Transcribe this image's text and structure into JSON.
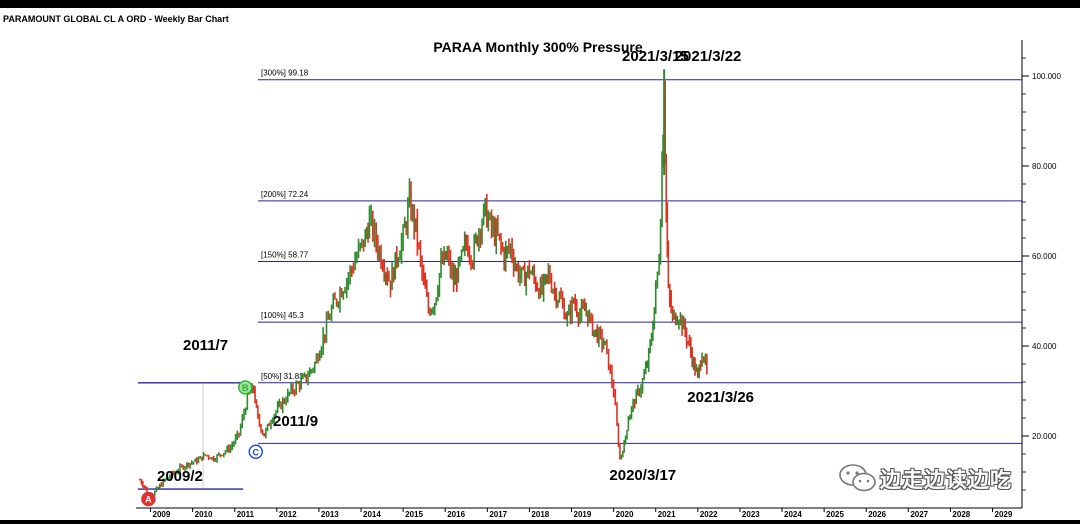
{
  "header": {
    "title": "PARAMOUNT GLOBAL CL A ORD - Weekly Bar Chart"
  },
  "watermark": {
    "text": "边走边读边吃",
    "icon": "wechat-icon"
  },
  "colors": {
    "up": "#2e8b2e",
    "down": "#e0301e",
    "level": "#2424a8",
    "bg": "#ffffff",
    "frame": "#000000"
  },
  "chart_data": {
    "type": "bar",
    "subtype": "weekly-ohlc",
    "title": "PARAA Monthly 300% Pressure",
    "y_axis": {
      "ticks": [
        "20.000",
        "40.000",
        "60.000",
        "80.000",
        "100.000"
      ],
      "range": [
        4,
        108
      ],
      "position": "right"
    },
    "x_axis": {
      "ticks": [
        "2009",
        "2010",
        "2011",
        "2012",
        "2013",
        "2014",
        "2015",
        "2016",
        "2017",
        "2018",
        "2019",
        "2020",
        "2021",
        "2022",
        "2023",
        "2024",
        "2025",
        "2026",
        "2027",
        "2028",
        "2029"
      ],
      "range": [
        2008.75,
        2029.7
      ]
    },
    "levels": [
      {
        "label": "[300%] 99.18",
        "value": 99.18
      },
      {
        "label": "[200%] 72.24",
        "value": 72.24
      },
      {
        "label": "[150%] 58.77",
        "value": 58.77
      },
      {
        "label": "[100%] 45.3",
        "value": 45.3
      },
      {
        "label": "[50%] 31.83",
        "value": 31.83
      },
      {
        "label": "",
        "value": 18.36
      }
    ],
    "abc_lines": [
      {
        "value": 31.83,
        "from": 2008.7,
        "to": 2011.2
      },
      {
        "value": 8.2,
        "from": 2008.7,
        "to": 2011.2
      }
    ],
    "points": [
      {
        "marker": "A",
        "x": 2008.95,
        "y": 6.0,
        "color": "#e03030",
        "text": "2009/2"
      },
      {
        "marker": "B",
        "x": 2011.25,
        "y": 30.8,
        "color": "#30b030",
        "text": "2011/7"
      },
      {
        "marker": "C",
        "x": 2011.5,
        "y": 16.5,
        "color": "#2040e0",
        "text": "2011/9"
      }
    ],
    "annotations": [
      {
        "text": "2021/3/15",
        "x": 2020.2,
        "y": 103.3
      },
      {
        "text": "2021/3/22",
        "x": 2021.45,
        "y": 103.3
      },
      {
        "text": "2021/3/26",
        "x": 2021.75,
        "y": 27.6
      },
      {
        "text": "2020/3/17",
        "x": 2019.9,
        "y": 10.2
      }
    ],
    "price_path": [
      [
        2008.75,
        10.2
      ],
      [
        2008.85,
        9.0
      ],
      [
        2008.95,
        6.3
      ],
      [
        2009.1,
        7.5
      ],
      [
        2009.3,
        9.8
      ],
      [
        2009.5,
        11.5
      ],
      [
        2009.7,
        12.8
      ],
      [
        2009.9,
        13.9
      ],
      [
        2010.1,
        14.5
      ],
      [
        2010.3,
        15.8
      ],
      [
        2010.5,
        15.0
      ],
      [
        2010.7,
        16.2
      ],
      [
        2010.9,
        17.5
      ],
      [
        2011.1,
        20.5
      ],
      [
        2011.3,
        28.5
      ],
      [
        2011.45,
        30.5
      ],
      [
        2011.55,
        23.5
      ],
      [
        2011.7,
        20.2
      ],
      [
        2011.9,
        24.5
      ],
      [
        2012.1,
        27.0
      ],
      [
        2012.3,
        29.5
      ],
      [
        2012.5,
        31.5
      ],
      [
        2012.7,
        33.0
      ],
      [
        2012.9,
        36.0
      ],
      [
        2013.1,
        42.0
      ],
      [
        2013.3,
        48.0
      ],
      [
        2013.5,
        52.0
      ],
      [
        2013.7,
        55.5
      ],
      [
        2013.9,
        60.0
      ],
      [
        2014.1,
        64.0
      ],
      [
        2014.2,
        68.0
      ],
      [
        2014.4,
        62.0
      ],
      [
        2014.55,
        58.0
      ],
      [
        2014.7,
        54.0
      ],
      [
        2014.85,
        60.0
      ],
      [
        2015.0,
        64.0
      ],
      [
        2015.15,
        72.0
      ],
      [
        2015.3,
        66.0
      ],
      [
        2015.45,
        56.0
      ],
      [
        2015.6,
        48.0
      ],
      [
        2015.75,
        50.0
      ],
      [
        2015.9,
        58.0
      ],
      [
        2016.05,
        60.0
      ],
      [
        2016.2,
        54.0
      ],
      [
        2016.35,
        58.0
      ],
      [
        2016.5,
        63.0
      ],
      [
        2016.65,
        60.0
      ],
      [
        2016.8,
        66.0
      ],
      [
        2016.95,
        70.0
      ],
      [
        2017.1,
        66.0
      ],
      [
        2017.25,
        64.0
      ],
      [
        2017.4,
        60.0
      ],
      [
        2017.55,
        62.0
      ],
      [
        2017.7,
        57.0
      ],
      [
        2017.85,
        55.0
      ],
      [
        2018.0,
        57.0
      ],
      [
        2018.15,
        54.0
      ],
      [
        2018.3,
        52.0
      ],
      [
        2018.45,
        56.0
      ],
      [
        2018.6,
        52.0
      ],
      [
        2018.75,
        50.0
      ],
      [
        2018.9,
        46.0
      ],
      [
        2019.05,
        50.0
      ],
      [
        2019.2,
        47.0
      ],
      [
        2019.35,
        48.0
      ],
      [
        2019.5,
        44.0
      ],
      [
        2019.65,
        42.0
      ],
      [
        2019.8,
        40.0
      ],
      [
        2019.92,
        34.0
      ],
      [
        2020.0,
        30.0
      ],
      [
        2020.08,
        22.0
      ],
      [
        2020.15,
        15.0
      ],
      [
        2020.25,
        18.0
      ],
      [
        2020.35,
        24.0
      ],
      [
        2020.5,
        28.0
      ],
      [
        2020.65,
        31.0
      ],
      [
        2020.8,
        36.0
      ],
      [
        2020.9,
        42.0
      ],
      [
        2021.0,
        52.0
      ],
      [
        2021.08,
        60.0
      ],
      [
        2021.15,
        80.0
      ],
      [
        2021.2,
        98.5
      ],
      [
        2021.25,
        70.0
      ],
      [
        2021.3,
        52.0
      ],
      [
        2021.4,
        46.0
      ],
      [
        2021.55,
        47.0
      ],
      [
        2021.7,
        43.0
      ],
      [
        2021.8,
        40.0
      ],
      [
        2021.9,
        36.0
      ],
      [
        2022.0,
        33.0
      ],
      [
        2022.1,
        39.0
      ],
      [
        2022.18,
        36.0
      ],
      [
        2022.25,
        31.5
      ]
    ]
  }
}
